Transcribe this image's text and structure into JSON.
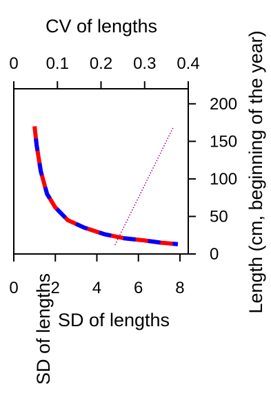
{
  "chart_data": {
    "type": "line",
    "xlabel": "SD of lengths",
    "x2label": "CV of lengths",
    "ylabel": "Length (cm, beginning of the year)",
    "left_label": "SD of lengths",
    "xlim": [
      0,
      8.4
    ],
    "x_ticks": [
      0,
      2,
      4,
      6,
      8
    ],
    "x2lim": [
      0,
      0.4
    ],
    "x2_ticks": [
      0,
      0.1,
      0.2,
      0.3,
      0.4
    ],
    "x2_tick_labels": [
      "0",
      "0.1",
      "0.2",
      "0.3",
      "0.4"
    ],
    "ylim": [
      0,
      220
    ],
    "y_ticks": [
      0,
      50,
      100,
      150,
      200
    ],
    "grid": false,
    "series": [
      {
        "axis": "bottom",
        "colors": [
          "#ff0000",
          "#0000ff"
        ],
        "style": "thick-dashed",
        "points": [
          {
            "x": 1.0,
            "y": 170
          },
          {
            "x": 1.1,
            "y": 145
          },
          {
            "x": 1.3,
            "y": 110
          },
          {
            "x": 1.6,
            "y": 80
          },
          {
            "x": 2.0,
            "y": 62
          },
          {
            "x": 2.6,
            "y": 45
          },
          {
            "x": 3.4,
            "y": 35
          },
          {
            "x": 4.4,
            "y": 26
          },
          {
            "x": 5.3,
            "y": 21
          },
          {
            "x": 6.3,
            "y": 18
          },
          {
            "x": 7.1,
            "y": 15
          },
          {
            "x": 7.9,
            "y": 13
          }
        ]
      },
      {
        "axis": "top",
        "colors": [
          "#8b008b"
        ],
        "style": "dotted",
        "points": [
          {
            "x": 0.232,
            "y": 12
          },
          {
            "x": 0.365,
            "y": 168
          }
        ]
      }
    ]
  }
}
